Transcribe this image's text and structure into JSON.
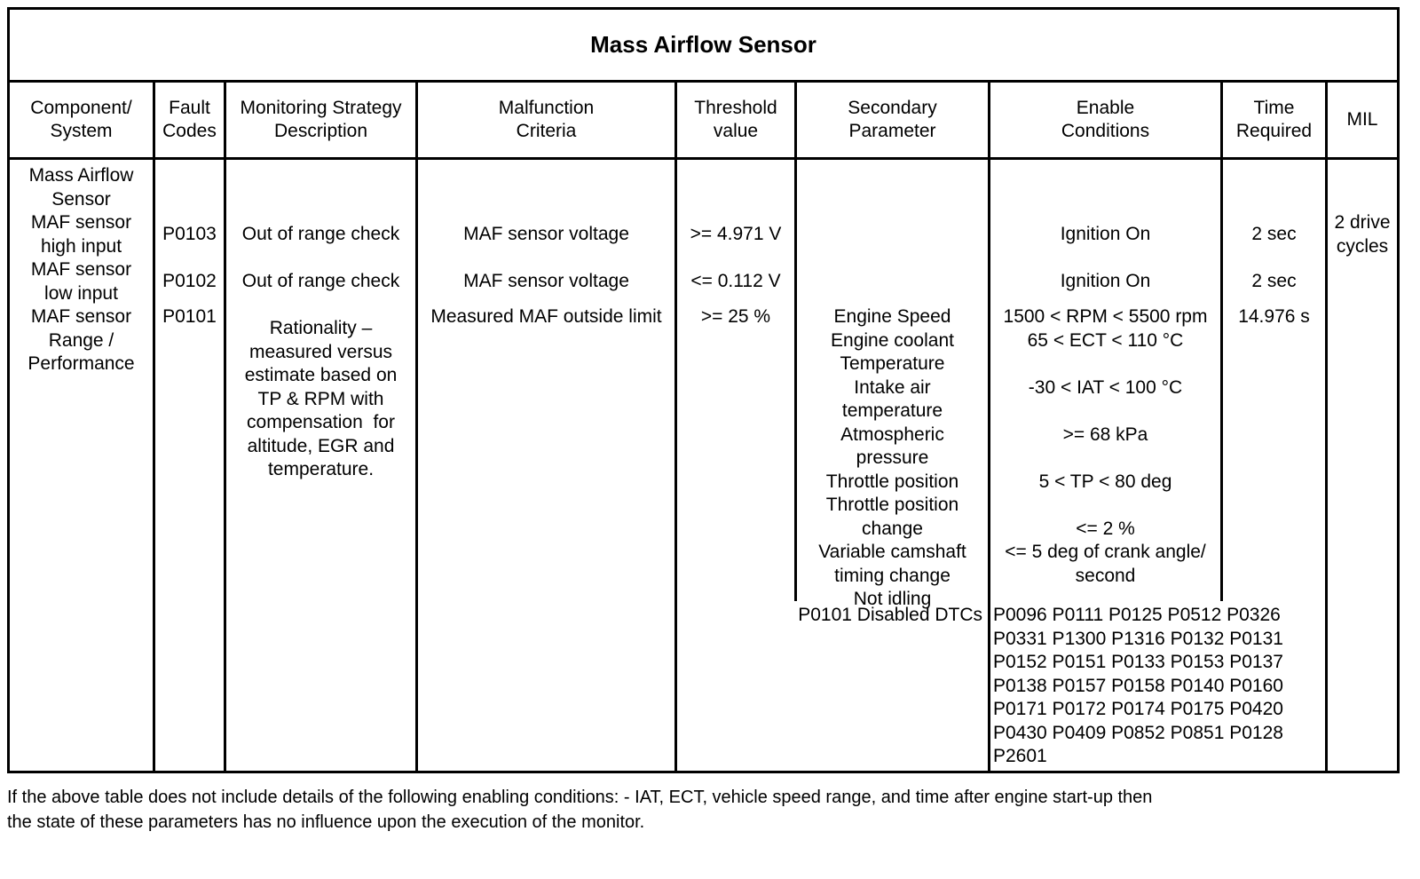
{
  "title": "Mass Airflow Sensor",
  "header": {
    "component_system": [
      "Component/",
      "System"
    ],
    "fault_codes": [
      "Fault",
      "Codes"
    ],
    "monitoring_strategy": [
      "Monitoring Strategy",
      "Description"
    ],
    "malfunction_criteria": [
      "Malfunction",
      "Criteria"
    ],
    "threshold_value": [
      "Threshold",
      "value"
    ],
    "secondary_parameter": [
      "Secondary",
      "Parameter"
    ],
    "enable_conditions": [
      "Enable",
      "Conditions"
    ],
    "time_required": [
      "Time",
      "Required"
    ],
    "mil": [
      "MIL"
    ]
  },
  "body": {
    "component_system": [
      "Mass Airflow",
      "Sensor",
      "MAF sensor",
      "high input",
      "MAF sensor",
      "low input",
      "MAF sensor",
      "Range /",
      "Performance"
    ],
    "fault_codes": [
      "P0103",
      "P0102",
      "P0101"
    ],
    "monitoring": {
      "row1": "Out of range check",
      "row2": "Out of range check",
      "row3": [
        "Rationality –",
        "measured versus",
        "estimate based on",
        "TP & RPM with",
        "compensation  for",
        "altitude, EGR and",
        "temperature."
      ]
    },
    "malfunction": [
      "MAF sensor voltage",
      "MAF sensor voltage",
      "Measured MAF outside limit"
    ],
    "threshold": [
      ">= 4.971 V",
      "<= 0.112 V",
      ">= 25 %"
    ],
    "secondary": [
      "Engine Speed",
      "Engine coolant",
      "Temperature",
      "Intake air",
      "temperature",
      "Atmospheric",
      "pressure",
      "Throttle position",
      "Throttle position",
      "change",
      "Variable camshaft",
      "timing change",
      "Not idling"
    ],
    "secondary_disabled_label": "P0101 Disabled DTCs",
    "enable": {
      "row1": "Ignition On",
      "row2": "Ignition On",
      "row3": [
        "1500 < RPM < 5500 rpm",
        "65 < ECT < 110 °C",
        "",
        "-30 < IAT < 100 °C",
        "",
        ">= 68 kPa",
        "",
        "5 < TP < 80 deg",
        "",
        "<= 2 %",
        "<= 5 deg of crank angle/",
        "second"
      ]
    },
    "disabled_dtcs": [
      "P0096 P0111 P0125 P0512 P0326",
      "P0331 P1300 P1316 P0132 P0131",
      "P0152 P0151 P0133 P0153 P0137",
      "P0138 P0157 P0158 P0140 P0160",
      "P0171 P0172 P0174 P0175 P0420",
      "P0430 P0409 P0852 P0851 P0128",
      "P2601"
    ],
    "time_required": [
      "2 sec",
      "2 sec",
      "14.976 s"
    ],
    "mil": [
      "2 drive",
      "cycles"
    ]
  },
  "footnote_lines": [
    "If the above table does not include details of the following enabling conditions: - IAT, ECT, vehicle speed range, and time after engine start-up then",
    "the state of these parameters has no influence upon the execution of the monitor."
  ]
}
